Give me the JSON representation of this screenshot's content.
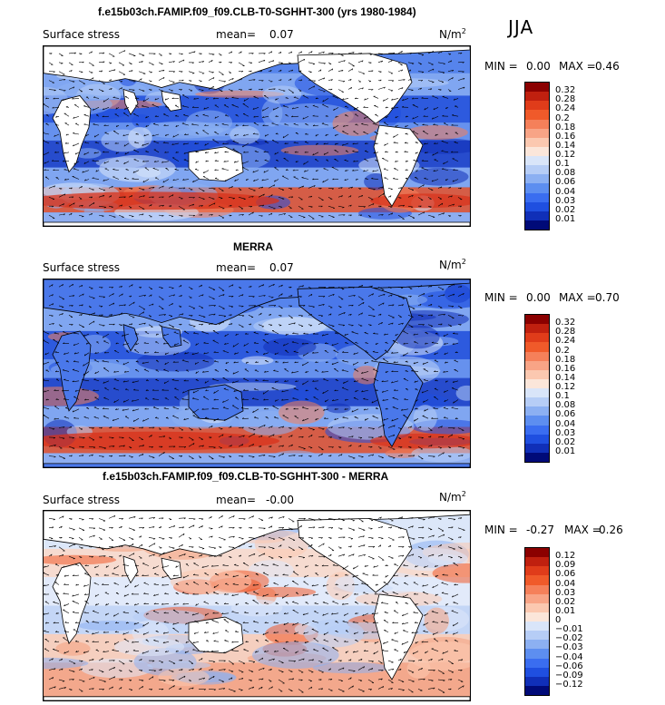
{
  "season": "JJA",
  "panels": [
    {
      "title": "f.e15b03ch.FAMIP.f09_f09.CLB-T0-SGHHT-300 (yrs 1980-1984)",
      "variable": "Surface stress",
      "mean_label": "mean=",
      "mean_value": "0.07",
      "units": "N/m",
      "units_exp": "2",
      "min_label": "MIN =",
      "min_value": "0.00",
      "max_label": "MAX =",
      "max_value": "0.46",
      "colorbar_labels": [
        "0.32",
        "0.28",
        "0.24",
        "0.2",
        "0.18",
        "0.16",
        "0.14",
        "0.12",
        "0.1",
        "0.08",
        "0.06",
        "0.04",
        "0.03",
        "0.02",
        "0.01"
      ],
      "colorbar_colors": [
        "#8b0000",
        "#c0200f",
        "#e03c1a",
        "#f05a2a",
        "#f5805a",
        "#f8a486",
        "#fbc8b0",
        "#fbe6da",
        "#d9e5f9",
        "#b6cdf6",
        "#8cb0f2",
        "#5d8ef0",
        "#3a6df0",
        "#1f4fe0",
        "#102fb8",
        "#000a78"
      ],
      "colorbar_scheme": "blue-low-red-high",
      "map_style": "full-field"
    },
    {
      "title": "MERRA",
      "variable": "Surface stress",
      "mean_label": "mean=",
      "mean_value": "0.07",
      "units": "N/m",
      "units_exp": "2",
      "min_label": "MIN =",
      "min_value": "0.00",
      "max_label": "MAX =",
      "max_value": "0.70",
      "colorbar_labels": [
        "0.32",
        "0.28",
        "0.24",
        "0.2",
        "0.18",
        "0.16",
        "0.14",
        "0.12",
        "0.1",
        "0.08",
        "0.06",
        "0.04",
        "0.03",
        "0.02",
        "0.01"
      ],
      "colorbar_colors": [
        "#8b0000",
        "#c0200f",
        "#e03c1a",
        "#f05a2a",
        "#f5805a",
        "#f8a486",
        "#fbc8b0",
        "#fbe6da",
        "#d9e5f9",
        "#b6cdf6",
        "#8cb0f2",
        "#5d8ef0",
        "#3a6df0",
        "#1f4fe0",
        "#102fb8",
        "#000a78"
      ],
      "colorbar_scheme": "blue-low-red-high",
      "map_style": "full-field-filled-land"
    },
    {
      "title": "f.e15b03ch.FAMIP.f09_f09.CLB-T0-SGHHT-300 - MERRA",
      "variable": "Surface stress",
      "mean_label": "mean=",
      "mean_value": "-0.00",
      "units": "N/m",
      "units_exp": "2",
      "min_label": "MIN =",
      "min_value": "-0.27",
      "max_label": "MAX =",
      "max_value": "0.26",
      "colorbar_labels": [
        "0.12",
        "0.09",
        "0.06",
        "0.04",
        "0.03",
        "0.02",
        "0.01",
        "0",
        "−0.01",
        "−0.02",
        "−0.03",
        "−0.04",
        "−0.06",
        "−0.09",
        "−0.12"
      ],
      "colorbar_colors": [
        "#8b0000",
        "#c0200f",
        "#e03c1a",
        "#f05a2a",
        "#f5805a",
        "#f8a486",
        "#fbc8b0",
        "#fbe6da",
        "#d9e5f9",
        "#b6cdf6",
        "#8cb0f2",
        "#5d8ef0",
        "#3a6df0",
        "#1f4fe0",
        "#102fb8",
        "#000a78"
      ],
      "colorbar_scheme": "diverging",
      "map_style": "difference"
    }
  ]
}
